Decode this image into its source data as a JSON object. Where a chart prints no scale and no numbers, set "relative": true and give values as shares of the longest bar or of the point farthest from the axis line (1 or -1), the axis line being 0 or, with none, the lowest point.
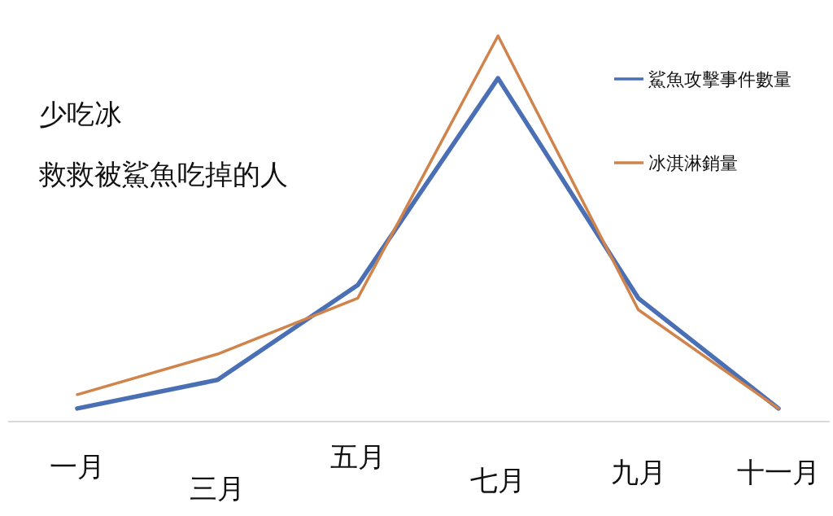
{
  "chart_data": {
    "type": "line",
    "relative": true,
    "title": "少吃冰",
    "subtitle": "救救被鯊魚吃掉的人",
    "categories": [
      "一月",
      "三月",
      "五月",
      "七月",
      "九月",
      "十一月"
    ],
    "series": [
      {
        "name": "鯊魚攻擊事件數量",
        "color": "#4a6fb5",
        "values": [
          0.034,
          0.108,
          0.354,
          0.89,
          0.32,
          0.034
        ]
      },
      {
        "name": "冰淇淋銷量",
        "color": "#d0834a",
        "values": [
          0.07,
          0.175,
          0.32,
          1,
          0.29,
          0.034
        ]
      }
    ],
    "legend": "top right",
    "grid": false,
    "marker": "none",
    "line_style": "solid"
  }
}
